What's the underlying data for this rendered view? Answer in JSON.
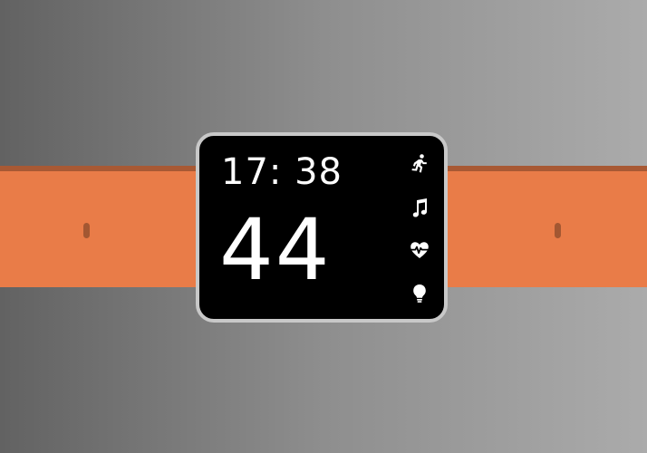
{
  "watch": {
    "time": "17: 38",
    "value": "44",
    "icons": [
      "running-icon",
      "music-note-icon",
      "heart-rate-icon",
      "lightbulb-icon"
    ]
  },
  "colors": {
    "background_left": "#626262",
    "background_right": "#ababab",
    "strap": "#e97c48",
    "strap_shadow": "#a85934",
    "strap_hole": "#a35732",
    "bezel": "#c8c8c8",
    "screen": "#000000",
    "foreground": "#ffffff"
  }
}
